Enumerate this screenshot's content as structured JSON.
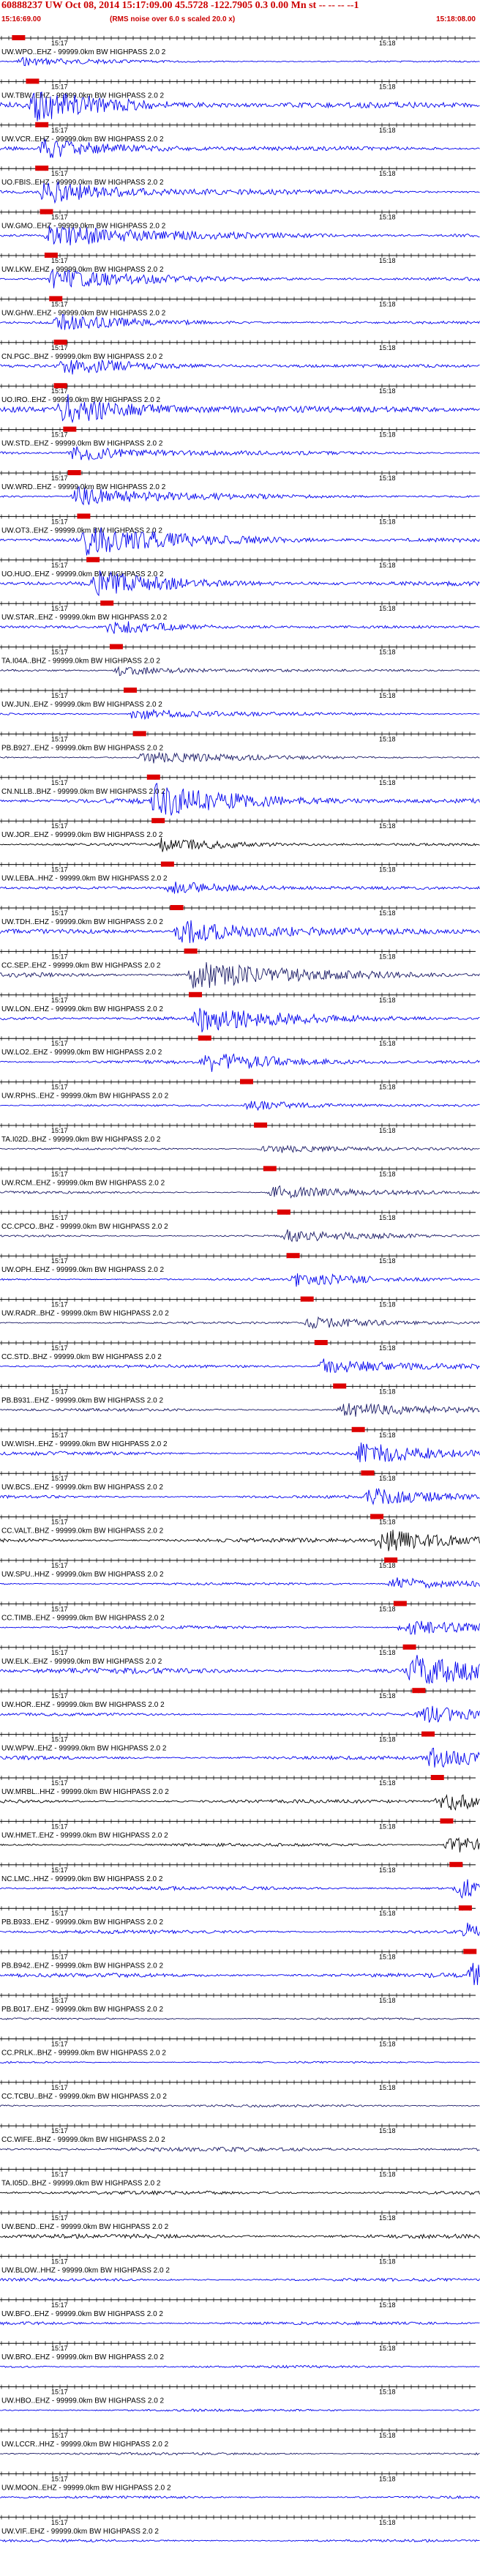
{
  "header": {
    "title": "60888237 UW Oct 08, 2014 15:17:09.00   45.5728  -122.7905  0.3 0.00 Mn st -- -- -- --1",
    "subtitle": "(RMS noise over 6.0 s scaled 20.0 x)",
    "time_left": "15:16:69.00",
    "time_right": "15:18:08.00"
  },
  "colors": {
    "pick": "#dd0000",
    "blue": "#0000ee",
    "navy": "#1a1a66",
    "black": "#000000",
    "label": "#000000"
  },
  "chart_data": {
    "type": "seismogram-record-section",
    "filter_label": "- 99999.0km BW HIGHPASS 2.0 2",
    "minute_labels": [
      "15:17",
      "15:18"
    ],
    "tick_minute_marks": [
      2,
      3
    ],
    "traces": [
      {
        "station": "UW.WPO..EHZ",
        "pick": 0.01,
        "color": "blue",
        "amp": 0.25
      },
      {
        "station": "UW.TBW..EHZ",
        "pick": 0.04,
        "color": "blue",
        "amp": 0.9
      },
      {
        "station": "UW.VCR..EHZ",
        "pick": 0.06,
        "color": "blue",
        "amp": 0.6
      },
      {
        "station": "UO.FBIS..EHZ",
        "pick": 0.06,
        "color": "blue",
        "amp": 0.7
      },
      {
        "station": "UW.GMO..EHZ",
        "pick": 0.07,
        "color": "blue",
        "amp": 0.8
      },
      {
        "station": "UW.LKW..EHZ",
        "pick": 0.08,
        "color": "blue",
        "amp": 0.6
      },
      {
        "station": "UW.GHW..EHZ",
        "pick": 0.09,
        "color": "blue",
        "amp": 0.45
      },
      {
        "station": "CN.PGC..BHZ",
        "pick": 0.1,
        "color": "blue",
        "amp": 0.5
      },
      {
        "station": "UO.IRO..EHZ",
        "pick": 0.1,
        "color": "blue",
        "amp": 0.9
      },
      {
        "station": "UW.STD..EHZ",
        "pick": 0.12,
        "color": "blue",
        "amp": 0.5
      },
      {
        "station": "UW.WRD..EHZ",
        "pick": 0.13,
        "color": "blue",
        "amp": 0.6
      },
      {
        "station": "UW.OT3..EHZ",
        "pick": 0.15,
        "color": "blue",
        "amp": 0.9
      },
      {
        "station": "UO.HUO..EHZ",
        "pick": 0.17,
        "color": "blue",
        "amp": 0.7
      },
      {
        "station": "UW.STAR..EHZ",
        "pick": 0.2,
        "color": "blue",
        "amp": 0.4
      },
      {
        "station": "TA.I04A..BHZ",
        "pick": 0.22,
        "color": "navy",
        "amp": 0.3
      },
      {
        "station": "UW.JUN..EHZ",
        "pick": 0.25,
        "color": "blue",
        "amp": 0.35
      },
      {
        "station": "PB.B927..EHZ",
        "pick": 0.27,
        "color": "navy",
        "amp": 0.4
      },
      {
        "station": "CN.NLLB..BHZ",
        "pick": 0.3,
        "color": "blue",
        "amp": 0.95
      },
      {
        "station": "UW.JOR..EHZ",
        "pick": 0.31,
        "color": "black",
        "amp": 0.4
      },
      {
        "station": "UW.LEBA..HHZ",
        "pick": 0.33,
        "color": "blue",
        "amp": 0.4
      },
      {
        "station": "UW.TDH..EHZ",
        "pick": 0.35,
        "color": "blue",
        "amp": 0.8
      },
      {
        "station": "CC.SEP..EHZ",
        "pick": 0.38,
        "color": "navy",
        "amp": 0.9
      },
      {
        "station": "UW.LON..EHZ",
        "pick": 0.39,
        "color": "blue",
        "amp": 0.8
      },
      {
        "station": "UW.LO2..EHZ",
        "pick": 0.41,
        "color": "blue",
        "amp": 0.6
      },
      {
        "station": "UW.RPHS..EHZ",
        "pick": 0.5,
        "color": "blue",
        "amp": 0.3
      },
      {
        "station": "TA.I02D..BHZ",
        "pick": 0.53,
        "color": "navy",
        "amp": 0.3
      },
      {
        "station": "UW.RCM..EHZ",
        "pick": 0.55,
        "color": "navy",
        "amp": 0.4
      },
      {
        "station": "CC.CPCO..BHZ",
        "pick": 0.58,
        "color": "navy",
        "amp": 0.35
      },
      {
        "station": "UW.OPH..EHZ",
        "pick": 0.6,
        "color": "blue",
        "amp": 0.4
      },
      {
        "station": "UW.RADR..BHZ",
        "pick": 0.63,
        "color": "navy",
        "amp": 0.35
      },
      {
        "station": "CC.STD..BHZ",
        "pick": 0.66,
        "color": "blue",
        "amp": 0.5
      },
      {
        "station": "PB.B931..EHZ",
        "pick": 0.7,
        "color": "navy",
        "amp": 0.45
      },
      {
        "station": "UW.WISH..EHZ",
        "pick": 0.74,
        "color": "blue",
        "amp": 0.6
      },
      {
        "station": "UW.BCS..EHZ",
        "pick": 0.76,
        "color": "blue",
        "amp": 0.5
      },
      {
        "station": "CC.VALT..BHZ",
        "pick": 0.78,
        "color": "black",
        "amp": 0.7
      },
      {
        "station": "UW.SPU..HHZ",
        "pick": 0.81,
        "color": "blue",
        "amp": 0.4
      },
      {
        "station": "CC.TIMB..EHZ",
        "pick": 0.83,
        "color": "blue",
        "amp": 0.5
      },
      {
        "station": "UW.ELK..EHZ",
        "pick": 0.85,
        "color": "blue",
        "amp": 0.9
      },
      {
        "station": "UW.HOR..EHZ",
        "pick": 0.87,
        "color": "blue",
        "amp": 0.5
      },
      {
        "station": "UW.WPW..EHZ",
        "pick": 0.89,
        "color": "blue",
        "amp": 0.6
      },
      {
        "station": "UW.MRBL..HHZ",
        "pick": 0.91,
        "color": "black",
        "amp": 0.6
      },
      {
        "station": "UW.HMET..EHZ",
        "pick": 0.93,
        "color": "black",
        "amp": 0.5
      },
      {
        "station": "NC.LMC..HHZ",
        "pick": 0.95,
        "color": "blue",
        "amp": 0.6
      },
      {
        "station": "PB.B933..EHZ",
        "pick": 0.97,
        "color": "blue",
        "amp": 0.6
      },
      {
        "station": "PB.B942..EHZ",
        "pick": 0.98,
        "color": "blue",
        "amp": 0.7
      },
      {
        "station": "PB.B017..EHZ",
        "pick": null,
        "color": "navy",
        "amp": 0.3
      },
      {
        "station": "CC.PRLK..BHZ",
        "pick": null,
        "color": "blue",
        "amp": 0.3
      },
      {
        "station": "CC.TCBU..BHZ",
        "pick": null,
        "color": "navy",
        "amp": 0.4
      },
      {
        "station": "CC.WIFE..BHZ",
        "pick": null,
        "color": "navy",
        "amp": 0.7
      },
      {
        "station": "TA.I05D..BHZ",
        "pick": null,
        "color": "black",
        "amp": 0.6
      },
      {
        "station": "UW.BEND..EHZ",
        "pick": null,
        "color": "black",
        "amp": 0.7
      },
      {
        "station": "UW.BLOW..HHZ",
        "pick": null,
        "color": "blue",
        "amp": 0.5
      },
      {
        "station": "UW.BFO..EHZ",
        "pick": null,
        "color": "blue",
        "amp": 0.5
      },
      {
        "station": "UW.BRO..EHZ",
        "pick": null,
        "color": "blue",
        "amp": 0.4
      },
      {
        "station": "UW.HBO..EHZ",
        "pick": null,
        "color": "blue",
        "amp": 0.4
      },
      {
        "station": "UW.LCCR..HHZ",
        "pick": null,
        "color": "navy",
        "amp": 0.4
      },
      {
        "station": "UW.MOON..EHZ",
        "pick": null,
        "color": "blue",
        "amp": 0.4
      },
      {
        "station": "UW.VIF..EHZ",
        "pick": null,
        "color": "blue",
        "amp": 0.4
      }
    ]
  }
}
